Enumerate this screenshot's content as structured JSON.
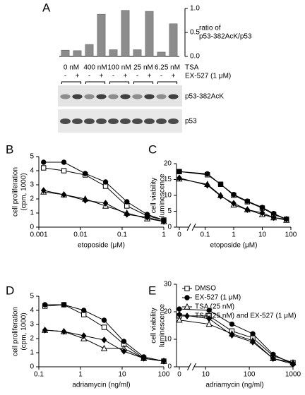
{
  "chart_data": [
    {
      "type": "bar",
      "panel": "A",
      "categories": [
        "-",
        "+",
        "-",
        "+",
        "-",
        "+",
        "-",
        "+",
        "-",
        "+"
      ],
      "groups": [
        "0 nM",
        "400 nM",
        "100 nM",
        "25 nM",
        "6.25 nM"
      ],
      "group_label": "TSA",
      "category_label": "EX-527 (1 μM)",
      "values": [
        0.13,
        0.12,
        0.25,
        0.88,
        0.14,
        0.96,
        0.14,
        0.94,
        0.09,
        0.68
      ],
      "color": "#8c8c8c",
      "axis": "y2",
      "y2lim": [
        0,
        1
      ],
      "y2ticks": [
        {
          "value": 0,
          "label": "0.0"
        },
        {
          "value": 0.5,
          "label": "0.5"
        },
        {
          "value": 1,
          "label": "1.0"
        }
      ],
      "y2_label": [
        "ratio of",
        "p53-382AcK/p53"
      ],
      "blots": [
        "p53-382AcK",
        "p53"
      ]
    },
    {
      "type": "line",
      "panel": "B",
      "x": [
        0.0013,
        0.004,
        0.013,
        0.04,
        0.13,
        0.4,
        1
      ],
      "xscale": "log",
      "xlim": [
        0.001,
        1
      ],
      "xticks": [
        0.001,
        0.01,
        0.1,
        1
      ],
      "ylim": [
        0,
        5
      ],
      "yticks": [
        0,
        1,
        2,
        3,
        4,
        5
      ],
      "x_label": "etoposide (μM)",
      "y_label": [
        "cell proliferation",
        "(cpm, 1000)"
      ],
      "series": [
        {
          "marker": "square-open",
          "color": "#000000",
          "values": [
            4.2,
            4.0,
            3.7,
            2.9,
            1.5,
            0.8,
            0.5
          ]
        },
        {
          "marker": "circle",
          "color": "#000000",
          "values": [
            4.6,
            4.6,
            3.8,
            3.2,
            1.8,
            0.9,
            0.5
          ]
        },
        {
          "marker": "triangle-open",
          "color": "#000000",
          "values": [
            2.5,
            2.3,
            2.0,
            1.5,
            1.0,
            0.6,
            0.4
          ]
        },
        {
          "marker": "diamond",
          "color": "#000000",
          "values": [
            2.6,
            2.3,
            1.9,
            1.7,
            0.9,
            0.7,
            0.4
          ]
        }
      ]
    },
    {
      "type": "line",
      "panel": "C",
      "x": [
        0,
        0.12,
        0.35,
        1,
        3,
        10,
        25,
        70
      ],
      "xscale": "log",
      "axis_break": true,
      "xlim": [
        0,
        100
      ],
      "xticks": [
        0,
        0.1,
        1,
        10,
        100
      ],
      "ylim": [
        0,
        20
      ],
      "yticks": [
        0,
        5,
        10,
        15,
        20
      ],
      "x_label": "etoposide (μM)",
      "y_label": [
        "cell viability",
        "luminescence"
      ],
      "series": [
        {
          "marker": "square-open",
          "color": "#000000",
          "values": [
            17.5,
            16.5,
            13.5,
            10,
            8,
            6,
            4,
            2.5
          ]
        },
        {
          "marker": "circle",
          "color": "#000000",
          "values": [
            17.5,
            16.8,
            13.5,
            10.3,
            8.2,
            6.2,
            4.3,
            2.5
          ]
        },
        {
          "marker": "triangle-open",
          "color": "#000000",
          "values": [
            15.2,
            13.5,
            10,
            7,
            5.5,
            4,
            3,
            2.2
          ]
        },
        {
          "marker": "diamond",
          "color": "#000000",
          "values": [
            15.5,
            13.2,
            9.8,
            7.5,
            5.5,
            4.5,
            3,
            2.5
          ]
        }
      ]
    },
    {
      "type": "line",
      "panel": "D",
      "x": [
        0.14,
        0.4,
        1.2,
        3.7,
        11,
        33,
        100
      ],
      "xscale": "log",
      "xlim": [
        0.1,
        100
      ],
      "xticks": [
        0.1,
        1,
        10,
        100
      ],
      "ylim": [
        0,
        5
      ],
      "yticks": [
        0,
        1,
        2,
        3,
        4,
        5
      ],
      "x_label": "adriamycin (ng/ml)",
      "y_label": [
        "cell proliferation",
        "(cpm, 1000)"
      ],
      "series": [
        {
          "marker": "square-open",
          "color": "#000000",
          "values": [
            4.3,
            4.4,
            3.7,
            2.8,
            1.6,
            0.6,
            0.4
          ]
        },
        {
          "marker": "circle",
          "color": "#000000",
          "values": [
            4.4,
            4.4,
            4.0,
            3.3,
            1.8,
            0.7,
            0.4
          ]
        },
        {
          "marker": "triangle-open",
          "color": "#000000",
          "values": [
            2.6,
            2.5,
            2.0,
            1.3,
            1.3,
            0.6,
            0.4
          ]
        },
        {
          "marker": "diamond",
          "color": "#000000",
          "values": [
            2.6,
            2.5,
            2.2,
            1.9,
            1.1,
            0.6,
            0.4
          ]
        }
      ]
    },
    {
      "type": "line",
      "panel": "E",
      "x": [
        0,
        12,
        40,
        120,
        350,
        1000
      ],
      "xscale": "log",
      "axis_break": true,
      "xlim": [
        0,
        1000
      ],
      "xticks": [
        0,
        10,
        100,
        1000
      ],
      "ylim": [
        0,
        30
      ],
      "yticks": [
        0,
        10,
        20,
        30
      ],
      "x_label": "adriamycin (ng/ml)",
      "y_label": [
        "cell viability",
        "luminescence"
      ],
      "legend": "upper right",
      "series": [
        {
          "name": "DMSO",
          "marker": "square-open",
          "color": "#000000",
          "values": [
            18.5,
            18.5,
            13,
            10.5,
            4,
            1.5
          ]
        },
        {
          "name": "EX-527 (1 μM)",
          "marker": "circle",
          "color": "#000000",
          "values": [
            21,
            20.5,
            15.5,
            12,
            4.5,
            1
          ]
        },
        {
          "name": "TSA (25 nM)",
          "marker": "triangle-open",
          "color": "#000000",
          "values": [
            17,
            15.5,
            12,
            9.5,
            3,
            1.5
          ]
        },
        {
          "name": "TSA (25 nM) and EX-527 (1 μM)",
          "marker": "diamond",
          "color": "#000000",
          "values": [
            19,
            17.5,
            11.5,
            9,
            3,
            1
          ]
        }
      ]
    }
  ]
}
